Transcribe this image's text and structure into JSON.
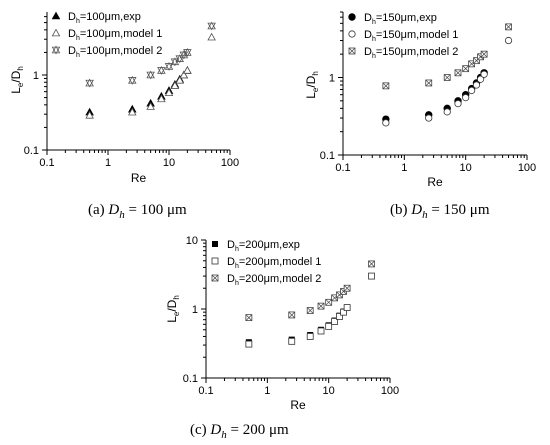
{
  "chart_data": [
    {
      "type": "scatter",
      "caption": {
        "prefix": "(a)",
        "var": "D",
        "sub": "h",
        "rest": " = 100 μm"
      },
      "xlabel": "Re",
      "ylabel": {
        "L": "L",
        "e": "e",
        "slash": "/D",
        "h": "h"
      },
      "xscale": "log",
      "yscale": "log",
      "xlim": [
        0.1,
        100
      ],
      "ylim": [
        0.1,
        10
      ],
      "xticks": [
        "0.1",
        "1",
        "10",
        "100"
      ],
      "yticks": [
        "0.1",
        "1"
      ],
      "legend_position": "top-left",
      "series": [
        {
          "name": "Dh=100μm,exp",
          "legend": {
            "pre": "D",
            "sub": "h",
            "post": "=100μm,exp"
          },
          "marker": "filled-triangle",
          "x": [
            0.5,
            2.5,
            5,
            7.5,
            10,
            12.5,
            15,
            17.5,
            20
          ],
          "y": [
            0.32,
            0.35,
            0.42,
            0.52,
            0.62,
            0.75,
            0.88,
            1.0,
            1.15
          ]
        },
        {
          "name": "Dh=100μm,model 1",
          "legend": {
            "pre": "D",
            "sub": "h",
            "post": "=100μm,model 1"
          },
          "marker": "open-triangle",
          "x": [
            0.5,
            2.5,
            5,
            7.5,
            10,
            12.5,
            15,
            17.5,
            20,
            50
          ],
          "y": [
            0.29,
            0.32,
            0.38,
            0.48,
            0.58,
            0.72,
            0.85,
            1.0,
            1.15,
            3.2
          ]
        },
        {
          "name": "Dh=100μm,model 2",
          "legend": {
            "pre": "D",
            "sub": "h",
            "post": "=100μm,model 2"
          },
          "marker": "crossed-triangle",
          "x": [
            0.5,
            2.5,
            5,
            7.5,
            10,
            12.5,
            15,
            17.5,
            20,
            50
          ],
          "y": [
            0.78,
            0.85,
            1.0,
            1.15,
            1.3,
            1.5,
            1.65,
            1.85,
            2.0,
            4.5
          ]
        }
      ]
    },
    {
      "type": "scatter",
      "caption": {
        "prefix": "(b)",
        "var": "D",
        "sub": "h",
        "rest": " = 150 μm"
      },
      "xlabel": "Re",
      "ylabel": {
        "L": "L",
        "e": "e",
        "slash": "/D",
        "h": "h"
      },
      "xscale": "log",
      "yscale": "log",
      "xlim": [
        0.1,
        100
      ],
      "ylim": [
        0.1,
        10
      ],
      "xticks": [
        "0.1",
        "1",
        "10",
        "100"
      ],
      "yticks": [
        "0.1",
        "1"
      ],
      "legend_position": "top-left",
      "series": [
        {
          "name": "Dh=150μm,exp",
          "legend": {
            "pre": "D",
            "sub": "h",
            "post": "=150μm,exp"
          },
          "marker": "filled-circle",
          "x": [
            0.5,
            2.5,
            5,
            7.5,
            10,
            12.5,
            15,
            17.5,
            20
          ],
          "y": [
            0.29,
            0.33,
            0.4,
            0.5,
            0.6,
            0.72,
            0.85,
            1.0,
            1.15
          ]
        },
        {
          "name": "Dh=150μm,model 1",
          "legend": {
            "pre": "D",
            "sub": "h",
            "post": "=150μm,model 1"
          },
          "marker": "open-circle",
          "x": [
            0.5,
            2.5,
            5,
            7.5,
            10,
            12.5,
            15,
            17.5,
            20,
            50
          ],
          "y": [
            0.26,
            0.3,
            0.36,
            0.46,
            0.55,
            0.68,
            0.8,
            0.95,
            1.1,
            3.0
          ]
        },
        {
          "name": "Dh=150μm,model 2",
          "legend": {
            "pre": "D",
            "sub": "h",
            "post": "=150μm,model 2"
          },
          "marker": "crossed-square",
          "x": [
            0.5,
            2.5,
            5,
            7.5,
            10,
            12.5,
            15,
            17.5,
            20,
            50
          ],
          "y": [
            0.78,
            0.85,
            1.0,
            1.15,
            1.3,
            1.5,
            1.65,
            1.85,
            2.0,
            4.5
          ]
        }
      ]
    },
    {
      "type": "scatter",
      "caption": {
        "prefix": "(c)",
        "var": "D",
        "sub": "h",
        "rest": " = 200 μm"
      },
      "xlabel": "Re",
      "ylabel": {
        "L": "L",
        "e": "e",
        "slash": "/D",
        "h": "h"
      },
      "xscale": "log",
      "yscale": "log",
      "xlim": [
        0.1,
        100
      ],
      "ylim": [
        0.1,
        10
      ],
      "xticks": [
        "0.1",
        "1",
        "10",
        "100"
      ],
      "yticks": [
        "0.1",
        "1",
        "10"
      ],
      "legend_position": "top-left",
      "series": [
        {
          "name": "Dh=200μm,exp",
          "legend": {
            "pre": "D",
            "sub": "h",
            "post": "=200μm,exp"
          },
          "marker": "filled-square",
          "x": [
            0.5,
            2.5,
            5,
            7.5,
            10,
            12.5,
            15,
            17.5,
            20
          ],
          "y": [
            0.33,
            0.36,
            0.42,
            0.5,
            0.58,
            0.68,
            0.8,
            0.92,
            1.05
          ]
        },
        {
          "name": "Dh=200μm,model 1",
          "legend": {
            "pre": "D",
            "sub": "h",
            "post": "=200μm,model 1"
          },
          "marker": "open-square",
          "x": [
            0.5,
            2.5,
            5,
            7.5,
            10,
            12.5,
            15,
            17.5,
            20,
            50
          ],
          "y": [
            0.31,
            0.34,
            0.4,
            0.48,
            0.56,
            0.66,
            0.78,
            0.9,
            1.05,
            3.0
          ]
        },
        {
          "name": "Dh=200μm,model 2",
          "legend": {
            "pre": "D",
            "sub": "h",
            "post": "=200μm,model 2"
          },
          "marker": "crossed-square",
          "x": [
            0.5,
            2.5,
            5,
            7.5,
            10,
            12.5,
            15,
            17.5,
            20,
            50
          ],
          "y": [
            0.75,
            0.82,
            0.95,
            1.1,
            1.25,
            1.45,
            1.6,
            1.8,
            2.0,
            4.5
          ]
        }
      ]
    }
  ]
}
